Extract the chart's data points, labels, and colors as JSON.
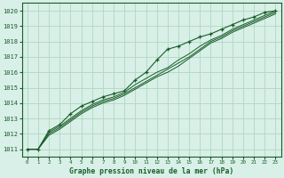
{
  "title": "Graphe pression niveau de la mer (hPa)",
  "bg_color": "#d8f0e8",
  "grid_color": "#b0d8c0",
  "line_color": "#1a5c28",
  "xlim": [
    -0.5,
    23.5
  ],
  "ylim": [
    1010.5,
    1020.5
  ],
  "xticks": [
    0,
    1,
    2,
    3,
    4,
    5,
    6,
    7,
    8,
    9,
    10,
    11,
    12,
    13,
    14,
    15,
    16,
    17,
    18,
    19,
    20,
    21,
    22,
    23
  ],
  "yticks": [
    1011,
    1012,
    1013,
    1014,
    1015,
    1016,
    1017,
    1018,
    1019,
    1020
  ],
  "line_main": [
    1011.0,
    1011.0,
    1012.2,
    1012.6,
    1013.3,
    1013.8,
    1014.1,
    1014.4,
    1014.6,
    1014.8,
    1015.5,
    1016.0,
    1016.8,
    1017.5,
    1017.7,
    1018.0,
    1018.3,
    1018.5,
    1018.8,
    1019.1,
    1019.4,
    1019.6,
    1019.9,
    1020.0
  ],
  "line2": [
    1011.0,
    1011.0,
    1012.1,
    1012.5,
    1013.0,
    1013.5,
    1013.9,
    1014.2,
    1014.4,
    1014.7,
    1015.2,
    1015.6,
    1016.0,
    1016.3,
    1016.8,
    1017.2,
    1017.7,
    1018.1,
    1018.4,
    1018.8,
    1019.1,
    1019.4,
    1019.7,
    1020.0
  ],
  "line3": [
    1011.0,
    1011.0,
    1012.0,
    1012.4,
    1012.9,
    1013.4,
    1013.8,
    1014.1,
    1014.3,
    1014.6,
    1015.0,
    1015.4,
    1015.8,
    1016.2,
    1016.6,
    1017.0,
    1017.5,
    1018.0,
    1018.3,
    1018.7,
    1019.0,
    1019.3,
    1019.6,
    1019.9
  ],
  "line4": [
    1011.0,
    1011.0,
    1011.9,
    1012.3,
    1012.8,
    1013.3,
    1013.7,
    1014.0,
    1014.2,
    1014.5,
    1014.9,
    1015.3,
    1015.7,
    1016.0,
    1016.4,
    1016.9,
    1017.4,
    1017.9,
    1018.2,
    1018.6,
    1018.9,
    1019.2,
    1019.5,
    1019.8
  ]
}
